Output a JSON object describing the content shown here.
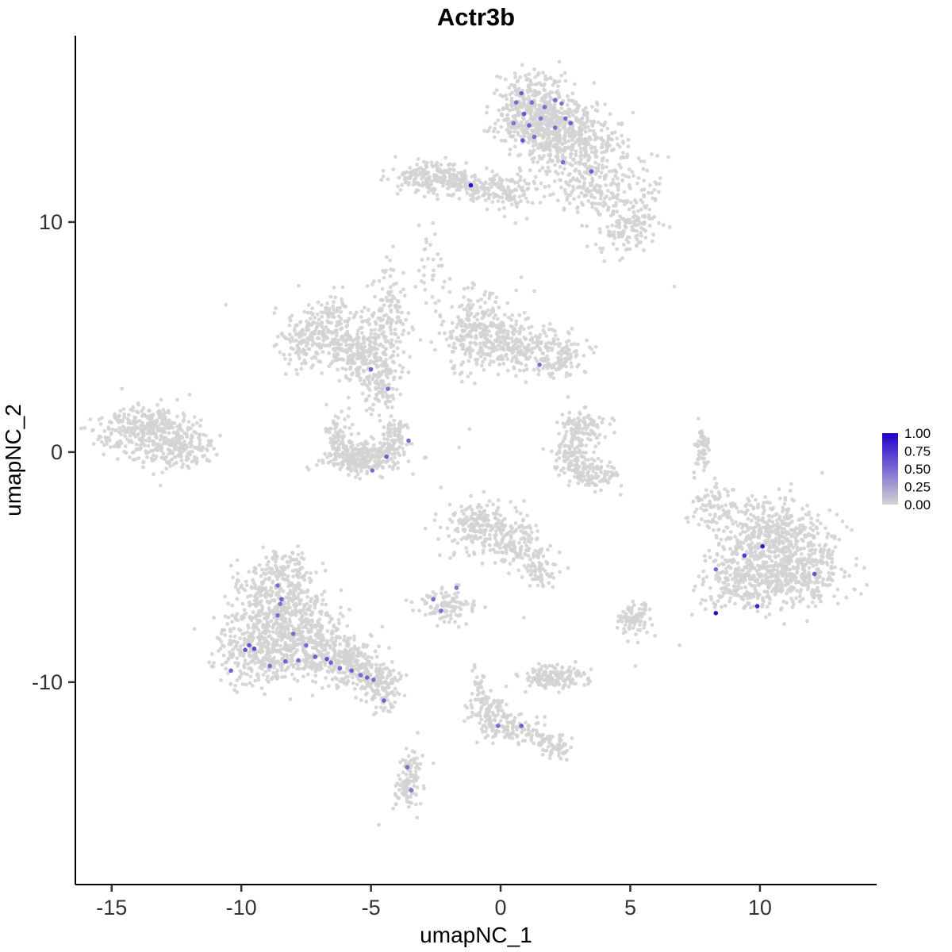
{
  "chart_data": {
    "type": "scatter",
    "title": "Actr3b",
    "xlabel": "umapNC_1",
    "ylabel": "umapNC_2",
    "x_ticks": [
      -15,
      -10,
      -5,
      0,
      5,
      10
    ],
    "y_ticks": [
      -10,
      0,
      10
    ],
    "xlim": [
      -16.4,
      14.5
    ],
    "ylim": [
      -18.8,
      18.1
    ],
    "grid": false,
    "point_color_zero": "#D3D3D3",
    "point_color_max": "#2200CC",
    "legend": {
      "position": "right",
      "labels": [
        "1.00",
        "0.75",
        "0.50",
        "0.25",
        "0.00"
      ],
      "values": [
        1.0,
        0.75,
        0.5,
        0.25,
        0.0
      ]
    },
    "clusters_format": [
      "cx",
      "cy",
      "sx",
      "sy",
      "n"
    ],
    "clusters": [
      [
        1.3,
        14.8,
        0.85,
        0.75,
        480
      ],
      [
        2.6,
        13.6,
        0.95,
        0.75,
        380
      ],
      [
        3.3,
        11.7,
        0.6,
        0.65,
        110
      ],
      [
        4.5,
        12.1,
        0.75,
        0.95,
        80
      ],
      [
        4.9,
        9.7,
        0.55,
        0.55,
        120
      ],
      [
        3.8,
        10.8,
        0.5,
        0.8,
        40
      ],
      [
        0.3,
        11.0,
        0.5,
        0.5,
        45
      ],
      [
        5.6,
        10.8,
        0.35,
        0.9,
        30
      ],
      [
        -2.6,
        11.95,
        0.7,
        0.33,
        210
      ],
      [
        -1.0,
        11.6,
        0.75,
        0.3,
        110
      ],
      [
        0.4,
        11.4,
        0.5,
        0.3,
        50
      ],
      [
        -2.6,
        8.1,
        0.3,
        0.85,
        30
      ],
      [
        -6.7,
        5.3,
        0.8,
        0.65,
        240
      ],
      [
        -5.4,
        4.2,
        0.65,
        0.55,
        190
      ],
      [
        -4.4,
        5.9,
        0.45,
        1.0,
        140
      ],
      [
        -4.6,
        3.0,
        0.38,
        0.7,
        110
      ],
      [
        -7.9,
        4.6,
        0.5,
        0.5,
        55
      ],
      [
        -0.9,
        5.2,
        0.7,
        0.8,
        260
      ],
      [
        0.6,
        4.6,
        0.85,
        0.6,
        200
      ],
      [
        2.2,
        4.2,
        0.6,
        0.45,
        110
      ],
      [
        -13.6,
        0.9,
        1.0,
        0.6,
        330
      ],
      [
        -12.4,
        0.2,
        0.6,
        0.5,
        140
      ],
      [
        -6.3,
        0.7,
        0.3,
        0.5,
        85
      ],
      [
        -5.3,
        -0.3,
        0.7,
        0.33,
        240
      ],
      [
        -4.1,
        0.5,
        0.3,
        0.5,
        85
      ],
      [
        3.2,
        1.0,
        0.5,
        0.4,
        110
      ],
      [
        2.7,
        -0.2,
        0.33,
        0.5,
        100
      ],
      [
        3.6,
        -0.9,
        0.5,
        0.33,
        100
      ],
      [
        7.8,
        0.1,
        0.12,
        0.55,
        55
      ],
      [
        10.6,
        -3.6,
        1.05,
        0.8,
        420
      ],
      [
        11.5,
        -5.2,
        0.9,
        0.75,
        330
      ],
      [
        9.4,
        -5.6,
        0.8,
        0.8,
        280
      ],
      [
        8.3,
        -2.4,
        0.5,
        0.55,
        85
      ],
      [
        -0.7,
        -3.2,
        0.75,
        0.55,
        220
      ],
      [
        0.7,
        -4.2,
        0.55,
        0.5,
        120
      ],
      [
        1.5,
        -5.2,
        0.35,
        0.35,
        55
      ],
      [
        -2.1,
        -6.7,
        0.45,
        0.4,
        100
      ],
      [
        -8.7,
        -6.3,
        0.8,
        0.7,
        280
      ],
      [
        -9.3,
        -8.6,
        0.9,
        0.8,
        380
      ],
      [
        -7.5,
        -8.0,
        0.9,
        0.85,
        330
      ],
      [
        -6.0,
        -9.0,
        0.7,
        0.5,
        200
      ],
      [
        -5.0,
        -9.8,
        0.5,
        0.4,
        140
      ],
      [
        -8.2,
        -5.0,
        0.65,
        0.4,
        75
      ],
      [
        -4.4,
        -10.5,
        0.3,
        0.35,
        55
      ],
      [
        5.1,
        -7.3,
        0.35,
        0.35,
        85
      ],
      [
        2.0,
        -9.8,
        0.55,
        0.27,
        160
      ],
      [
        -0.4,
        -11.4,
        0.4,
        0.45,
        95
      ],
      [
        0.4,
        -12.0,
        0.45,
        0.3,
        75
      ],
      [
        -0.9,
        -10.3,
        0.15,
        0.55,
        28
      ],
      [
        2.1,
        -12.8,
        0.3,
        0.28,
        60
      ],
      [
        1.2,
        -12.4,
        0.3,
        0.2,
        22
      ],
      [
        -3.5,
        -13.9,
        0.28,
        0.4,
        60
      ],
      [
        -3.6,
        -14.9,
        0.28,
        0.35,
        50
      ]
    ],
    "singles": [
      [
        -10.6,
        6.4
      ],
      [
        -2.8,
        8.4
      ],
      [
        6.7,
        7.2
      ],
      [
        4.0,
        8.3
      ],
      [
        0.8,
        7.6
      ],
      [
        1.3,
        7.0
      ],
      [
        2.6,
        2.4
      ],
      [
        -1.2,
        1.0
      ],
      [
        -1.6,
        0.2
      ],
      [
        12.4,
        -0.9
      ],
      [
        5.2,
        -9.3
      ],
      [
        -4.7,
        -16.2
      ],
      [
        -3.2,
        -12.2
      ],
      [
        0.9,
        -7.2
      ],
      [
        6.9,
        -8.4
      ],
      [
        -3.4,
        -13.0
      ]
    ],
    "expressing_cells_format": [
      "x",
      "y",
      "value"
    ],
    "expressing_cells": [
      [
        0.8,
        15.6,
        0.55
      ],
      [
        1.2,
        15.2,
        0.5
      ],
      [
        0.9,
        14.7,
        0.6
      ],
      [
        1.1,
        14.2,
        0.55
      ],
      [
        1.3,
        13.7,
        0.5
      ],
      [
        0.85,
        13.55,
        0.6
      ],
      [
        2.1,
        15.3,
        0.5
      ],
      [
        2.35,
        15.15,
        0.45
      ],
      [
        2.5,
        14.5,
        0.5
      ],
      [
        2.7,
        14.3,
        0.55
      ],
      [
        2.1,
        14.1,
        0.5
      ],
      [
        1.55,
        14.5,
        0.45
      ],
      [
        0.6,
        15.2,
        0.5
      ],
      [
        0.5,
        14.3,
        0.45
      ],
      [
        2.4,
        12.6,
        0.5
      ],
      [
        3.5,
        12.2,
        0.55
      ],
      [
        1.7,
        15.0,
        0.5
      ],
      [
        -1.15,
        11.6,
        0.95
      ],
      [
        -5.0,
        3.6,
        0.55
      ],
      [
        -4.35,
        2.75,
        0.5
      ],
      [
        -3.55,
        0.5,
        0.5
      ],
      [
        -4.4,
        -0.2,
        0.55
      ],
      [
        -4.95,
        -0.8,
        0.5
      ],
      [
        1.5,
        3.8,
        0.5
      ],
      [
        -2.3,
        -6.9,
        0.5
      ],
      [
        -1.7,
        -5.9,
        0.45
      ],
      [
        -2.6,
        -6.4,
        0.5
      ],
      [
        -8.6,
        -5.8,
        0.5
      ],
      [
        -8.45,
        -6.4,
        0.55
      ],
      [
        -8.6,
        -7.1,
        0.5
      ],
      [
        -8.0,
        -7.9,
        0.5
      ],
      [
        -9.7,
        -8.4,
        0.6
      ],
      [
        -9.5,
        -8.55,
        0.65
      ],
      [
        -9.85,
        -8.6,
        0.6
      ],
      [
        -10.4,
        -9.5,
        0.55
      ],
      [
        -8.9,
        -9.3,
        0.5
      ],
      [
        -8.3,
        -9.1,
        0.55
      ],
      [
        -7.8,
        -9.05,
        0.5
      ],
      [
        -7.15,
        -8.9,
        0.55
      ],
      [
        -6.7,
        -9.0,
        0.6
      ],
      [
        -6.55,
        -9.15,
        0.55
      ],
      [
        -6.2,
        -9.4,
        0.5
      ],
      [
        -5.75,
        -9.5,
        0.55
      ],
      [
        -5.4,
        -9.7,
        0.5
      ],
      [
        -5.15,
        -9.8,
        0.55
      ],
      [
        -4.9,
        -9.9,
        0.5
      ],
      [
        -4.5,
        -10.8,
        0.55
      ],
      [
        -7.5,
        -8.4,
        0.5
      ],
      [
        -8.5,
        -6.6,
        0.45
      ],
      [
        9.4,
        -4.5,
        0.75
      ],
      [
        10.1,
        -4.1,
        0.9
      ],
      [
        9.9,
        -6.7,
        0.85
      ],
      [
        8.3,
        -7.0,
        0.95
      ],
      [
        12.1,
        -5.3,
        0.6
      ],
      [
        8.3,
        -5.1,
        0.5
      ],
      [
        -0.1,
        -11.9,
        0.5
      ],
      [
        0.8,
        -11.9,
        0.55
      ],
      [
        -3.6,
        -13.7,
        0.5
      ],
      [
        -3.45,
        -14.7,
        0.45
      ]
    ]
  }
}
